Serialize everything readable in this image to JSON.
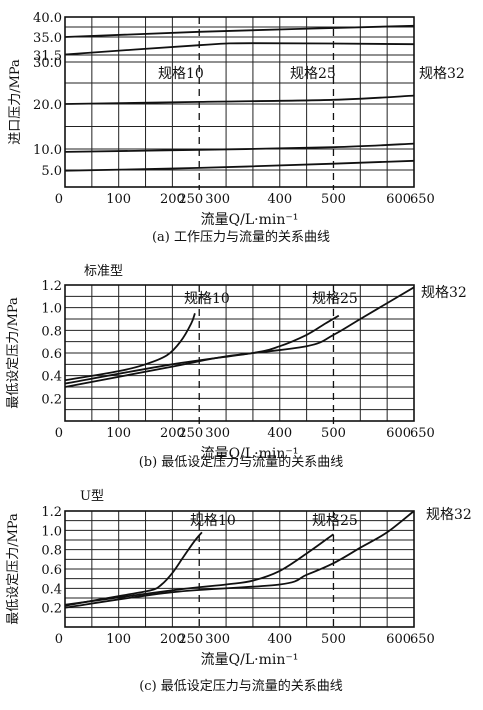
{
  "chart_data": [
    {
      "type": "line",
      "caption": "(a) 工作压力与流量的关系曲线",
      "ylabel": "进口压力/MPa",
      "xlabel": "流量Q/L·min⁻¹",
      "x_ticks": [
        "0",
        "100",
        "200",
        "250",
        "300",
        "400",
        "500",
        "600",
        "650"
      ],
      "y_ticks": [
        "5.0",
        "10.0",
        "20.0",
        "30.0",
        "31.5",
        "35.0",
        "40.0"
      ],
      "xlim": [
        0,
        650
      ],
      "y_scale": "broken-axis",
      "vlines": [
        250,
        500
      ],
      "annotations": [
        "规格10",
        "规格25",
        "规格32"
      ],
      "series": [
        {
          "values": [
            [
              0,
              35.0
            ],
            [
              250,
              36.3
            ],
            [
              650,
              37.8
            ]
          ]
        },
        {
          "values": [
            [
              0,
              31.6
            ],
            [
              250,
              33.4
            ],
            [
              350,
              33.8
            ],
            [
              650,
              33.6
            ]
          ]
        },
        {
          "values": [
            [
              0,
              20.0
            ],
            [
              250,
              20.5
            ],
            [
              500,
              21.0
            ],
            [
              650,
              22.0
            ]
          ]
        },
        {
          "values": [
            [
              0,
              9.3
            ],
            [
              250,
              9.8
            ],
            [
              500,
              10.4
            ],
            [
              650,
              11.2
            ]
          ]
        },
        {
          "values": [
            [
              0,
              4.8
            ],
            [
              250,
              5.5
            ],
            [
              500,
              6.5
            ],
            [
              650,
              7.2
            ]
          ]
        }
      ]
    },
    {
      "type": "line",
      "caption": "(b) 最低设定压力与流量的关系曲线",
      "ylabel": "最低设定压力/MPa",
      "xlabel": "流量Q/L·min⁻¹",
      "corner_label": "标准型",
      "x_ticks": [
        "0",
        "100",
        "200",
        "250",
        "300",
        "400",
        "500",
        "600",
        "650"
      ],
      "y_ticks": [
        "0.2",
        "0.4",
        "0.6",
        "0.8",
        "1.0",
        "1.2"
      ],
      "xlim": [
        0,
        650
      ],
      "ylim": [
        0,
        1.2
      ],
      "vlines": [
        250,
        500
      ],
      "annotations": [
        "规格10",
        "规格25",
        "规格32"
      ],
      "series": [
        {
          "values": [
            [
              0,
              0.36
            ],
            [
              100,
              0.44
            ],
            [
              150,
              0.5
            ],
            [
              190,
              0.58
            ],
            [
              215,
              0.7
            ],
            [
              235,
              0.86
            ],
            [
              242,
              0.95
            ]
          ]
        },
        {
          "values": [
            [
              0,
              0.33
            ],
            [
              200,
              0.5
            ],
            [
              350,
              0.6
            ],
            [
              400,
              0.66
            ],
            [
              450,
              0.76
            ],
            [
              485,
              0.86
            ],
            [
              510,
              0.93
            ]
          ]
        },
        {
          "values": [
            [
              0,
              0.3
            ],
            [
              200,
              0.48
            ],
            [
              300,
              0.57
            ],
            [
              450,
              0.66
            ],
            [
              500,
              0.76
            ],
            [
              550,
              0.9
            ],
            [
              600,
              1.04
            ],
            [
              650,
              1.18
            ]
          ]
        }
      ]
    },
    {
      "type": "line",
      "caption": "(c) 最低设定压力与流量的关系曲线",
      "ylabel": "最低设定压力/MPa",
      "xlabel": "流量Q/L·min⁻¹",
      "corner_label": "U型",
      "x_ticks": [
        "0",
        "100",
        "200",
        "250",
        "300",
        "400",
        "500",
        "600",
        "650"
      ],
      "y_ticks": [
        "0.2",
        "0.4",
        "0.6",
        "0.8",
        "1.0",
        "1.2"
      ],
      "xlim": [
        0,
        650
      ],
      "ylim": [
        0,
        1.2
      ],
      "vlines": [
        250,
        500
      ],
      "annotations": [
        "规格10",
        "规格25",
        "规格32"
      ],
      "series": [
        {
          "values": [
            [
              0,
              0.22
            ],
            [
              100,
              0.32
            ],
            [
              160,
              0.38
            ],
            [
              180,
              0.44
            ],
            [
              200,
              0.56
            ],
            [
              220,
              0.72
            ],
            [
              240,
              0.88
            ],
            [
              255,
              0.98
            ]
          ]
        },
        {
          "values": [
            [
              0,
              0.23
            ],
            [
              200,
              0.38
            ],
            [
              300,
              0.44
            ],
            [
              350,
              0.48
            ],
            [
              400,
              0.58
            ],
            [
              450,
              0.76
            ],
            [
              500,
              0.96
            ]
          ]
        },
        {
          "values": [
            [
              0,
              0.2
            ],
            [
              200,
              0.36
            ],
            [
              400,
              0.44
            ],
            [
              450,
              0.54
            ],
            [
              500,
              0.66
            ],
            [
              550,
              0.82
            ],
            [
              600,
              0.98
            ],
            [
              650,
              1.2
            ]
          ]
        }
      ]
    }
  ]
}
